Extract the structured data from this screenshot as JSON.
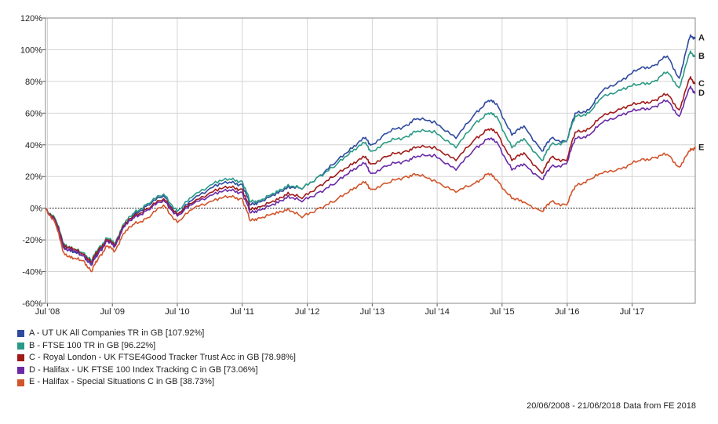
{
  "chart_data": {
    "type": "line",
    "title": "",
    "xlabel": "",
    "ylabel": "",
    "xlim": [
      "2008-06-20",
      "2018-06-21"
    ],
    "ylim": [
      -60,
      120
    ],
    "y_ticks": [
      120,
      100,
      80,
      60,
      40,
      20,
      0,
      -20,
      -40,
      -60
    ],
    "y_tick_labels": [
      "120%",
      "100%",
      "80%",
      "60%",
      "40%",
      "20%",
      "0%",
      "-20%",
      "-40%",
      "-60%"
    ],
    "x_ticks": [
      "2008-07-01",
      "2009-07-01",
      "2010-07-01",
      "2011-07-01",
      "2012-07-01",
      "2013-07-01",
      "2014-07-01",
      "2015-07-01",
      "2016-07-01",
      "2017-07-01"
    ],
    "x_tick_labels": [
      "Jul '08",
      "Jul '09",
      "Jul '10",
      "Jul '11",
      "Jul '12",
      "Jul '13",
      "Jul '14",
      "Jul '15",
      "Jul '16",
      "Jul '17"
    ],
    "grid": true,
    "legend_position": "bottom-left",
    "series": [
      {
        "name": "A - UT UK All Companies TR in GB [107.92%]",
        "end_label": "A",
        "color": "#2e4a9e",
        "points": [
          [
            "2008-06-20",
            0
          ],
          [
            "2008-08-15",
            -8
          ],
          [
            "2008-10-01",
            -24
          ],
          [
            "2008-11-20",
            -28
          ],
          [
            "2009-01-20",
            -30
          ],
          [
            "2009-03-05",
            -35
          ],
          [
            "2009-04-15",
            -27
          ],
          [
            "2009-06-01",
            -20
          ],
          [
            "2009-07-15",
            -24
          ],
          [
            "2009-09-01",
            -12
          ],
          [
            "2009-11-01",
            -4
          ],
          [
            "2010-01-15",
            2
          ],
          [
            "2010-04-15",
            8
          ],
          [
            "2010-07-01",
            -4
          ],
          [
            "2010-10-01",
            6
          ],
          [
            "2011-02-01",
            15
          ],
          [
            "2011-05-01",
            16
          ],
          [
            "2011-07-01",
            15
          ],
          [
            "2011-08-15",
            2
          ],
          [
            "2011-10-01",
            4
          ],
          [
            "2012-01-01",
            8
          ],
          [
            "2012-03-15",
            14
          ],
          [
            "2012-06-01",
            12
          ],
          [
            "2012-09-01",
            20
          ],
          [
            "2012-12-01",
            28
          ],
          [
            "2013-03-01",
            38
          ],
          [
            "2013-05-20",
            44
          ],
          [
            "2013-06-25",
            40
          ],
          [
            "2013-10-01",
            48
          ],
          [
            "2014-01-01",
            52
          ],
          [
            "2014-03-01",
            56
          ],
          [
            "2014-06-15",
            55
          ],
          [
            "2014-10-15",
            44
          ],
          [
            "2015-02-01",
            60
          ],
          [
            "2015-04-15",
            68
          ],
          [
            "2015-06-01",
            66
          ],
          [
            "2015-08-25",
            46
          ],
          [
            "2015-11-01",
            52
          ],
          [
            "2016-02-11",
            36
          ],
          [
            "2016-04-01",
            44
          ],
          [
            "2016-06-27",
            42
          ],
          [
            "2016-08-15",
            60
          ],
          [
            "2016-11-01",
            62
          ],
          [
            "2017-01-15",
            74
          ],
          [
            "2017-05-15",
            82
          ],
          [
            "2017-08-15",
            88
          ],
          [
            "2017-11-01",
            90
          ],
          [
            "2018-01-15",
            96
          ],
          [
            "2018-03-23",
            82
          ],
          [
            "2018-05-22",
            108
          ],
          [
            "2018-06-21",
            107.92
          ]
        ]
      },
      {
        "name": "B - FTSE 100 TR in GB [96.22%]",
        "end_label": "B",
        "color": "#2a9a86",
        "points": [
          [
            "2008-06-20",
            0
          ],
          [
            "2008-08-15",
            -7
          ],
          [
            "2008-10-01",
            -22
          ],
          [
            "2008-11-20",
            -26
          ],
          [
            "2009-01-20",
            -28
          ],
          [
            "2009-03-05",
            -33
          ],
          [
            "2009-04-15",
            -25
          ],
          [
            "2009-06-01",
            -19
          ],
          [
            "2009-07-15",
            -22
          ],
          [
            "2009-09-01",
            -10
          ],
          [
            "2009-11-01",
            -3
          ],
          [
            "2010-01-15",
            3
          ],
          [
            "2010-04-15",
            9
          ],
          [
            "2010-07-01",
            -2
          ],
          [
            "2010-10-01",
            8
          ],
          [
            "2011-02-01",
            17
          ],
          [
            "2011-05-01",
            18
          ],
          [
            "2011-07-01",
            17
          ],
          [
            "2011-08-15",
            4
          ],
          [
            "2011-10-01",
            5
          ],
          [
            "2012-01-01",
            9
          ],
          [
            "2012-03-15",
            15
          ],
          [
            "2012-06-01",
            12
          ],
          [
            "2012-09-01",
            20
          ],
          [
            "2012-12-01",
            26
          ],
          [
            "2013-03-01",
            36
          ],
          [
            "2013-05-20",
            41
          ],
          [
            "2013-06-25",
            36
          ],
          [
            "2013-10-01",
            42
          ],
          [
            "2014-01-01",
            45
          ],
          [
            "2014-03-01",
            48
          ],
          [
            "2014-06-15",
            49
          ],
          [
            "2014-10-15",
            38
          ],
          [
            "2015-02-01",
            54
          ],
          [
            "2015-04-15",
            60
          ],
          [
            "2015-06-01",
            58
          ],
          [
            "2015-08-25",
            38
          ],
          [
            "2015-11-01",
            44
          ],
          [
            "2016-02-11",
            30
          ],
          [
            "2016-04-01",
            40
          ],
          [
            "2016-06-27",
            42
          ],
          [
            "2016-08-15",
            58
          ],
          [
            "2016-11-01",
            60
          ],
          [
            "2017-01-15",
            70
          ],
          [
            "2017-05-15",
            76
          ],
          [
            "2017-08-15",
            78
          ],
          [
            "2017-11-01",
            80
          ],
          [
            "2018-01-15",
            86
          ],
          [
            "2018-03-23",
            76
          ],
          [
            "2018-05-22",
            98
          ],
          [
            "2018-06-21",
            96.22
          ]
        ]
      },
      {
        "name": "C - Royal London - UK FTSE4Good Tracker Trust Acc in GB [78.98%]",
        "end_label": "C",
        "color": "#a11a1a",
        "points": [
          [
            "2008-06-20",
            0
          ],
          [
            "2008-08-15",
            -8
          ],
          [
            "2008-10-01",
            -23
          ],
          [
            "2008-11-20",
            -26
          ],
          [
            "2009-01-20",
            -29
          ],
          [
            "2009-03-05",
            -34
          ],
          [
            "2009-04-15",
            -26
          ],
          [
            "2009-06-01",
            -20
          ],
          [
            "2009-07-15",
            -23
          ],
          [
            "2009-09-01",
            -11
          ],
          [
            "2009-11-01",
            -5
          ],
          [
            "2010-01-15",
            0
          ],
          [
            "2010-04-15",
            6
          ],
          [
            "2010-07-01",
            -4
          ],
          [
            "2010-10-01",
            4
          ],
          [
            "2011-02-01",
            12
          ],
          [
            "2011-05-01",
            13
          ],
          [
            "2011-07-01",
            12
          ],
          [
            "2011-08-15",
            -1
          ],
          [
            "2011-10-01",
            1
          ],
          [
            "2012-01-01",
            4
          ],
          [
            "2012-03-15",
            10
          ],
          [
            "2012-06-01",
            6
          ],
          [
            "2012-09-01",
            14
          ],
          [
            "2012-12-01",
            20
          ],
          [
            "2013-03-01",
            28
          ],
          [
            "2013-05-20",
            32
          ],
          [
            "2013-06-25",
            28
          ],
          [
            "2013-10-01",
            33
          ],
          [
            "2014-01-01",
            36
          ],
          [
            "2014-03-01",
            38
          ],
          [
            "2014-06-15",
            39
          ],
          [
            "2014-10-15",
            30
          ],
          [
            "2015-02-01",
            44
          ],
          [
            "2015-04-15",
            50
          ],
          [
            "2015-06-01",
            48
          ],
          [
            "2015-08-25",
            30
          ],
          [
            "2015-11-01",
            35
          ],
          [
            "2016-02-11",
            22
          ],
          [
            "2016-04-01",
            32
          ],
          [
            "2016-06-27",
            30
          ],
          [
            "2016-08-15",
            48
          ],
          [
            "2016-11-01",
            50
          ],
          [
            "2017-01-15",
            58
          ],
          [
            "2017-05-15",
            64
          ],
          [
            "2017-08-15",
            66
          ],
          [
            "2017-11-01",
            68
          ],
          [
            "2018-01-15",
            72
          ],
          [
            "2018-03-23",
            62
          ],
          [
            "2018-05-22",
            82
          ],
          [
            "2018-06-21",
            78.98
          ]
        ]
      },
      {
        "name": "D - Halifax - UK FTSE 100 Index Tracking C in GB [73.06%]",
        "end_label": "D",
        "color": "#6a2aa8",
        "points": [
          [
            "2008-06-20",
            0
          ],
          [
            "2008-08-15",
            -9
          ],
          [
            "2008-10-01",
            -25
          ],
          [
            "2008-11-20",
            -27
          ],
          [
            "2009-01-20",
            -30
          ],
          [
            "2009-03-05",
            -36
          ],
          [
            "2009-04-15",
            -28
          ],
          [
            "2009-06-01",
            -21
          ],
          [
            "2009-07-15",
            -24
          ],
          [
            "2009-09-01",
            -12
          ],
          [
            "2009-11-01",
            -6
          ],
          [
            "2010-01-15",
            -1
          ],
          [
            "2010-04-15",
            5
          ],
          [
            "2010-07-01",
            -5
          ],
          [
            "2010-10-01",
            3
          ],
          [
            "2011-02-01",
            10
          ],
          [
            "2011-05-01",
            11
          ],
          [
            "2011-07-01",
            10
          ],
          [
            "2011-08-15",
            -3
          ],
          [
            "2011-10-01",
            -1
          ],
          [
            "2012-01-01",
            2
          ],
          [
            "2012-03-15",
            8
          ],
          [
            "2012-06-01",
            4
          ],
          [
            "2012-09-01",
            10
          ],
          [
            "2012-12-01",
            15
          ],
          [
            "2013-03-01",
            24
          ],
          [
            "2013-05-20",
            28
          ],
          [
            "2013-06-25",
            22
          ],
          [
            "2013-10-01",
            27
          ],
          [
            "2014-01-01",
            30
          ],
          [
            "2014-03-01",
            32
          ],
          [
            "2014-06-15",
            34
          ],
          [
            "2014-10-15",
            24
          ],
          [
            "2015-02-01",
            38
          ],
          [
            "2015-04-15",
            44
          ],
          [
            "2015-06-01",
            42
          ],
          [
            "2015-08-25",
            24
          ],
          [
            "2015-11-01",
            28
          ],
          [
            "2016-02-11",
            18
          ],
          [
            "2016-04-01",
            26
          ],
          [
            "2016-06-27",
            28
          ],
          [
            "2016-08-15",
            44
          ],
          [
            "2016-11-01",
            46
          ],
          [
            "2017-01-15",
            54
          ],
          [
            "2017-05-15",
            60
          ],
          [
            "2017-08-15",
            62
          ],
          [
            "2017-11-01",
            64
          ],
          [
            "2018-01-15",
            68
          ],
          [
            "2018-03-23",
            58
          ],
          [
            "2018-05-22",
            76
          ],
          [
            "2018-06-21",
            73.06
          ]
        ]
      },
      {
        "name": "E - Halifax - Special Situations C in GB [38.73%]",
        "end_label": "E",
        "color": "#d2542a",
        "points": [
          [
            "2008-06-20",
            0
          ],
          [
            "2008-08-15",
            -10
          ],
          [
            "2008-10-01",
            -28
          ],
          [
            "2008-11-20",
            -32
          ],
          [
            "2009-01-20",
            -33
          ],
          [
            "2009-03-05",
            -40
          ],
          [
            "2009-04-15",
            -31
          ],
          [
            "2009-06-01",
            -24
          ],
          [
            "2009-07-15",
            -27
          ],
          [
            "2009-09-01",
            -16
          ],
          [
            "2009-11-01",
            -10
          ],
          [
            "2010-01-15",
            -6
          ],
          [
            "2010-04-15",
            2
          ],
          [
            "2010-07-01",
            -9
          ],
          [
            "2010-10-01",
            0
          ],
          [
            "2011-02-01",
            6
          ],
          [
            "2011-05-01",
            7
          ],
          [
            "2011-07-01",
            6
          ],
          [
            "2011-08-15",
            -8
          ],
          [
            "2011-10-01",
            -6
          ],
          [
            "2012-01-01",
            -4
          ],
          [
            "2012-03-15",
            0
          ],
          [
            "2012-06-01",
            -6
          ],
          [
            "2012-09-01",
            0
          ],
          [
            "2012-12-01",
            4
          ],
          [
            "2013-03-01",
            12
          ],
          [
            "2013-05-20",
            16
          ],
          [
            "2013-06-25",
            12
          ],
          [
            "2013-10-01",
            16
          ],
          [
            "2014-01-01",
            20
          ],
          [
            "2014-03-01",
            21
          ],
          [
            "2014-06-15",
            18
          ],
          [
            "2014-10-15",
            10
          ],
          [
            "2015-02-01",
            16
          ],
          [
            "2015-04-15",
            22
          ],
          [
            "2015-06-01",
            18
          ],
          [
            "2015-08-25",
            6
          ],
          [
            "2015-11-01",
            4
          ],
          [
            "2016-02-11",
            -2
          ],
          [
            "2016-04-01",
            4
          ],
          [
            "2016-06-27",
            2
          ],
          [
            "2016-08-15",
            14
          ],
          [
            "2016-11-01",
            18
          ],
          [
            "2017-01-15",
            22
          ],
          [
            "2017-05-15",
            26
          ],
          [
            "2017-08-15",
            30
          ],
          [
            "2017-11-01",
            32
          ],
          [
            "2018-01-15",
            34
          ],
          [
            "2018-03-23",
            26
          ],
          [
            "2018-05-22",
            36
          ],
          [
            "2018-06-21",
            38.73
          ]
        ]
      }
    ]
  },
  "footer": "20/06/2008 - 21/06/2018 Data from FE 2018"
}
